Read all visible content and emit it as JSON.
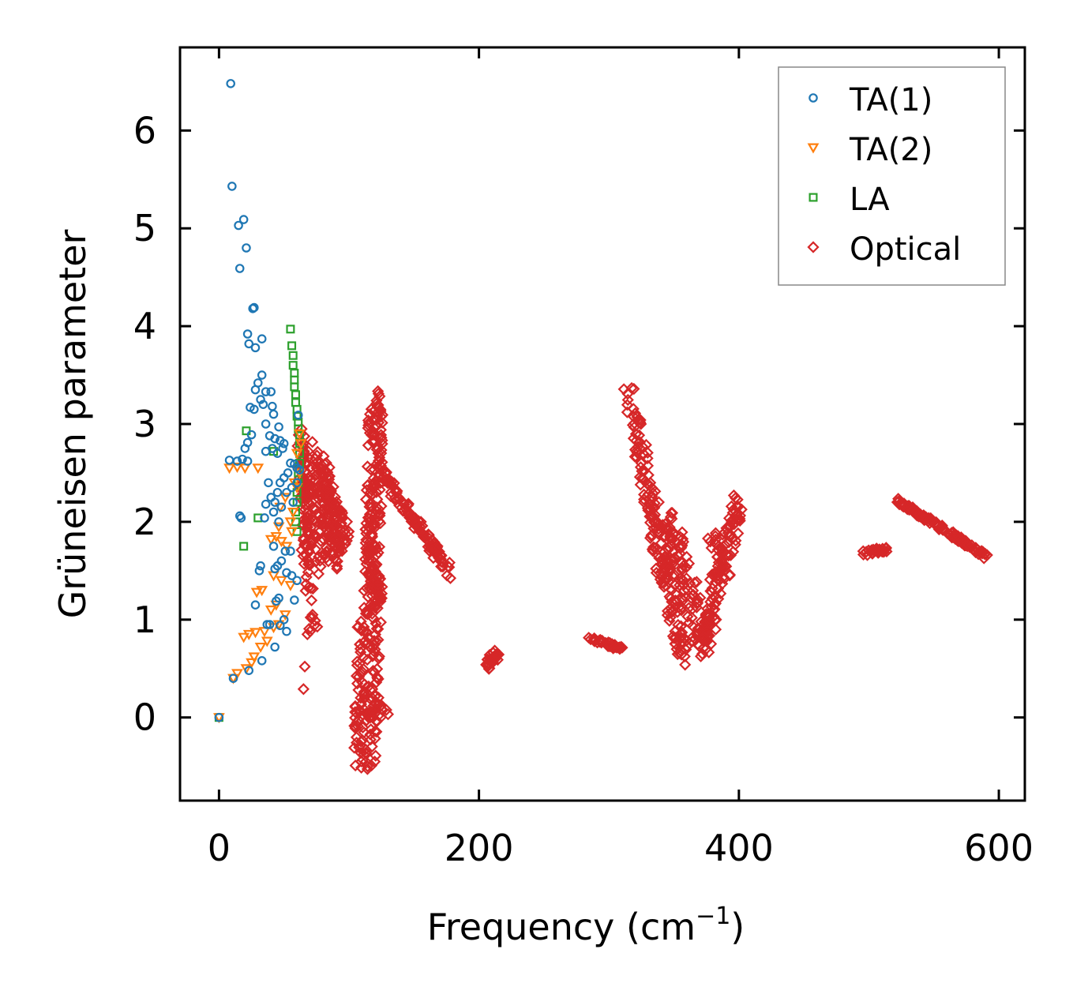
{
  "chart_data": {
    "type": "scatter",
    "title": "",
    "xlabel": "Frequency (cm",
    "xlabel_superscript": "−1",
    "xlabel_suffix": ")",
    "ylabel": "Grüneisen parameter",
    "xlim": [
      -30,
      620
    ],
    "ylim": [
      -0.85,
      6.85
    ],
    "xticks": [
      0,
      200,
      400,
      600
    ],
    "xtick_labels": [
      "0",
      "200",
      "400",
      "600"
    ],
    "yticks": [
      0,
      1,
      2,
      3,
      4,
      5,
      6
    ],
    "ytick_labels": [
      "0",
      "1",
      "2",
      "3",
      "4",
      "5",
      "6"
    ],
    "grid": false,
    "legend_position": "top-right",
    "series": [
      {
        "name": "TA(1)",
        "marker": "circle",
        "color": "#1f77b4",
        "points": [
          [
            0,
            0
          ],
          [
            9,
            6.48
          ],
          [
            10,
            5.43
          ],
          [
            15,
            5.03
          ],
          [
            19,
            5.09
          ],
          [
            21,
            4.8
          ],
          [
            16,
            4.59
          ],
          [
            26,
            4.18
          ],
          [
            27,
            4.19
          ],
          [
            22,
            3.92
          ],
          [
            23,
            3.82
          ],
          [
            28,
            3.78
          ],
          [
            33,
            3.87
          ],
          [
            33,
            3.5
          ],
          [
            30,
            3.42
          ],
          [
            28,
            3.35
          ],
          [
            32,
            3.25
          ],
          [
            36,
            3.33
          ],
          [
            40,
            3.33
          ],
          [
            24,
            3.17
          ],
          [
            27,
            3.15
          ],
          [
            34,
            3.2
          ],
          [
            42,
            3.1
          ],
          [
            41,
            3.18
          ],
          [
            36,
            3.0
          ],
          [
            46,
            2.97
          ],
          [
            43,
            2.85
          ],
          [
            47,
            2.83
          ],
          [
            50,
            2.8
          ],
          [
            36,
            2.72
          ],
          [
            41,
            2.75
          ],
          [
            39,
            2.88
          ],
          [
            45,
            2.7
          ],
          [
            49,
            2.75
          ],
          [
            55,
            2.6
          ],
          [
            58,
            2.59
          ],
          [
            60,
            2.55
          ],
          [
            62,
            2.53
          ],
          [
            56,
            2.35
          ],
          [
            53,
            2.5
          ],
          [
            50,
            2.45
          ],
          [
            47,
            2.4
          ],
          [
            45,
            2.3
          ],
          [
            43,
            2.2
          ],
          [
            40,
            2.25
          ],
          [
            38,
            2.4
          ],
          [
            36,
            2.18
          ],
          [
            42,
            2.1
          ],
          [
            48,
            2.15
          ],
          [
            52,
            2.3
          ],
          [
            57,
            2.2
          ],
          [
            60,
            2.4
          ],
          [
            61,
            3.09
          ],
          [
            25,
            2.89
          ],
          [
            22,
            2.81
          ],
          [
            20,
            2.75
          ],
          [
            18,
            2.64
          ],
          [
            8,
            2.63
          ],
          [
            14,
            2.62
          ],
          [
            22,
            2.62
          ],
          [
            16,
            2.06
          ],
          [
            17,
            2.04
          ],
          [
            35,
            2.04
          ],
          [
            46,
            2.0
          ],
          [
            42,
            1.75
          ],
          [
            51,
            1.7
          ],
          [
            55,
            1.7
          ],
          [
            48,
            1.6
          ],
          [
            45,
            1.55
          ],
          [
            52,
            1.48
          ],
          [
            56,
            1.45
          ],
          [
            60,
            1.4
          ],
          [
            43,
            1.52
          ],
          [
            32,
            1.55
          ],
          [
            31,
            1.5
          ],
          [
            46,
            1.22
          ],
          [
            44,
            1.19
          ],
          [
            58,
            1.2
          ],
          [
            28,
            1.15
          ],
          [
            50,
            1.0
          ],
          [
            37,
            0.95
          ],
          [
            39,
            0.95
          ],
          [
            47,
            0.94
          ],
          [
            52,
            0.88
          ],
          [
            43,
            0.72
          ],
          [
            33,
            0.58
          ],
          [
            23,
            0.48
          ],
          [
            11,
            0.4
          ]
        ]
      },
      {
        "name": "TA(2)",
        "marker": "triangle-down",
        "color": "#ff7f0e",
        "points": [
          [
            0,
            0
          ],
          [
            8,
            2.55
          ],
          [
            14,
            2.56
          ],
          [
            20,
            2.55
          ],
          [
            30,
            2.55
          ],
          [
            47,
            2.15
          ],
          [
            51,
            2.25
          ],
          [
            55,
            2.0
          ],
          [
            46,
            1.95
          ],
          [
            44,
            1.85
          ],
          [
            40,
            1.82
          ],
          [
            48,
            1.8
          ],
          [
            52,
            1.75
          ],
          [
            56,
            1.9
          ],
          [
            60,
            2.35
          ],
          [
            62,
            2.5
          ],
          [
            63,
            2.8
          ],
          [
            62,
            2.9
          ],
          [
            60,
            2.7
          ],
          [
            58,
            2.4
          ],
          [
            57,
            2.1
          ],
          [
            42,
            1.45
          ],
          [
            48,
            1.4
          ],
          [
            55,
            1.35
          ],
          [
            33,
            1.3
          ],
          [
            29,
            1.28
          ],
          [
            44,
            1.15
          ],
          [
            40,
            1.1
          ],
          [
            51,
            1.05
          ],
          [
            46,
            0.95
          ],
          [
            42,
            0.92
          ],
          [
            35,
            0.88
          ],
          [
            28,
            0.87
          ],
          [
            23,
            0.85
          ],
          [
            19,
            0.82
          ],
          [
            37,
            0.78
          ],
          [
            32,
            0.72
          ],
          [
            27,
            0.62
          ],
          [
            25,
            0.56
          ],
          [
            21,
            0.5
          ],
          [
            14,
            0.45
          ],
          [
            11,
            0.4
          ]
        ]
      },
      {
        "name": "LA",
        "marker": "square",
        "color": "#2ca02c",
        "points": [
          [
            0,
            0
          ],
          [
            55,
            3.97
          ],
          [
            56,
            3.8
          ],
          [
            57,
            3.7
          ],
          [
            57,
            3.6
          ],
          [
            58,
            3.52
          ],
          [
            58,
            3.45
          ],
          [
            58,
            3.38
          ],
          [
            59,
            3.3
          ],
          [
            59,
            3.22
          ],
          [
            60,
            3.15
          ],
          [
            60,
            3.08
          ],
          [
            61,
            3.02
          ],
          [
            61,
            2.95
          ],
          [
            62,
            2.88
          ],
          [
            62,
            2.8
          ],
          [
            62,
            2.7
          ],
          [
            62,
            2.6
          ],
          [
            61,
            2.5
          ],
          [
            61,
            2.4
          ],
          [
            60,
            2.3
          ],
          [
            60,
            2.2
          ],
          [
            59,
            2.1
          ],
          [
            59,
            2.0
          ],
          [
            60,
            1.9
          ],
          [
            21,
            2.93
          ],
          [
            42,
            2.72
          ],
          [
            30,
            2.04
          ],
          [
            19,
            1.75
          ]
        ]
      },
      {
        "name": "Optical",
        "marker": "diamond",
        "color": "#d62728",
        "clusters": [
          {
            "center_freq": 80,
            "gamma_range": [
              0.3,
              3.05
            ]
          },
          {
            "center_freq": 120,
            "gamma_range": [
              -0.52,
              3.35
            ]
          },
          {
            "center_freq": 160,
            "gamma_range": [
              1.45,
              1.95
            ]
          },
          {
            "center_freq": 210,
            "gamma_range": [
              0.52,
              0.68
            ]
          },
          {
            "center_freq": 297,
            "gamma_range": [
              0.69,
              0.82
            ]
          },
          {
            "center_freq": 360,
            "gamma_range": [
              0.58,
              3.33
            ]
          },
          {
            "center_freq": 505,
            "gamma_range": [
              1.65,
              1.75
            ]
          },
          {
            "center_freq": 555,
            "gamma_range": [
              1.65,
              2.22
            ]
          }
        ]
      }
    ]
  },
  "legend": {
    "items": [
      {
        "label": "TA(1)",
        "marker": "circle",
        "color": "#1f77b4"
      },
      {
        "label": "TA(2)",
        "marker": "triangle-down",
        "color": "#ff7f0e"
      },
      {
        "label": "LA",
        "marker": "square",
        "color": "#2ca02c"
      },
      {
        "label": "Optical",
        "marker": "diamond",
        "color": "#d62728"
      }
    ]
  }
}
